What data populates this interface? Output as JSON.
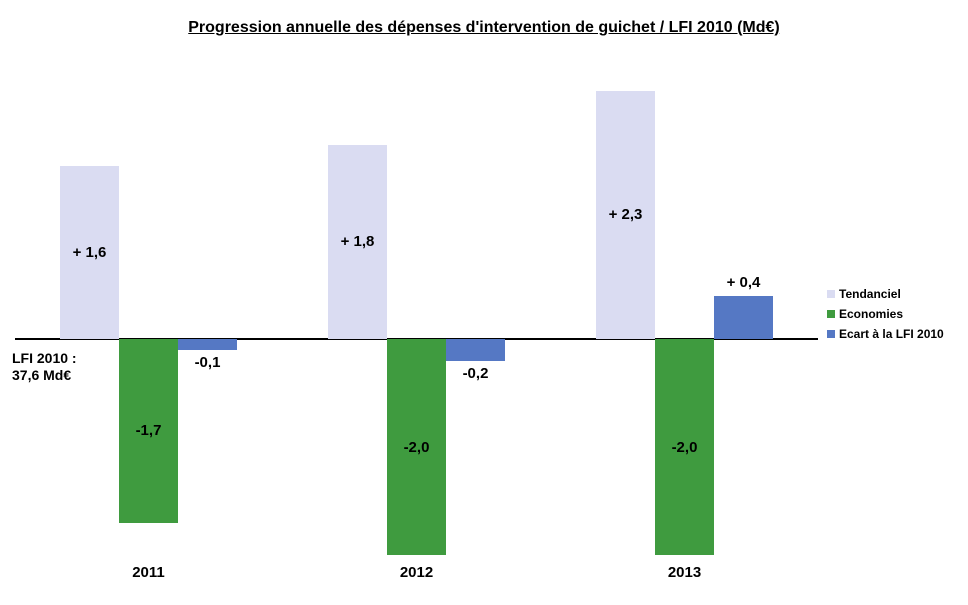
{
  "title": "Progression annuelle des dépenses d'intervention de guichet / LFI 2010 (Md€)",
  "baseline_note": {
    "line1": "LFI 2010 :",
    "line2": "37,6 Md€"
  },
  "colors": {
    "tendanciel": "#DADCF2",
    "economies": "#3F9B3F",
    "ecart_lfi": "#5578C4",
    "axis": "#000000",
    "background": "#FFFFFF",
    "text": "#000000"
  },
  "legend": {
    "items": [
      "Tendanciel",
      "Economies",
      "Ecart à la LFI 2010"
    ]
  },
  "chart_data": {
    "type": "bar",
    "title": "Progression annuelle des dépenses d'intervention de guichet / LFI 2010 (Md€)",
    "unit": "Md€",
    "categories": [
      "2011",
      "2012",
      "2013"
    ],
    "series": [
      {
        "name": "Tendanciel",
        "color": "#DADCF2",
        "values": [
          1.6,
          1.8,
          2.3
        ],
        "data_labels": [
          "+ 1,6",
          "+ 1,8",
          "+ 2,3"
        ],
        "label_placement": "inside"
      },
      {
        "name": "Economies",
        "color": "#3F9B3F",
        "values": [
          -1.7,
          -2.0,
          -2.0
        ],
        "data_labels": [
          "-1,7",
          "-2,0",
          "-2,0"
        ],
        "label_placement": "inside"
      },
      {
        "name": "Ecart à la LFI 2010",
        "color": "#5578C4",
        "values": [
          -0.1,
          -0.2,
          0.4
        ],
        "data_labels": [
          "-0,1",
          "-0,2",
          "+ 0,4"
        ],
        "label_placement": "outside"
      }
    ],
    "baseline_annotation": "LFI 2010 : 37,6 Md€",
    "ylim": [
      -2.5,
      2.5
    ],
    "grid": false,
    "legend_position": "right"
  }
}
